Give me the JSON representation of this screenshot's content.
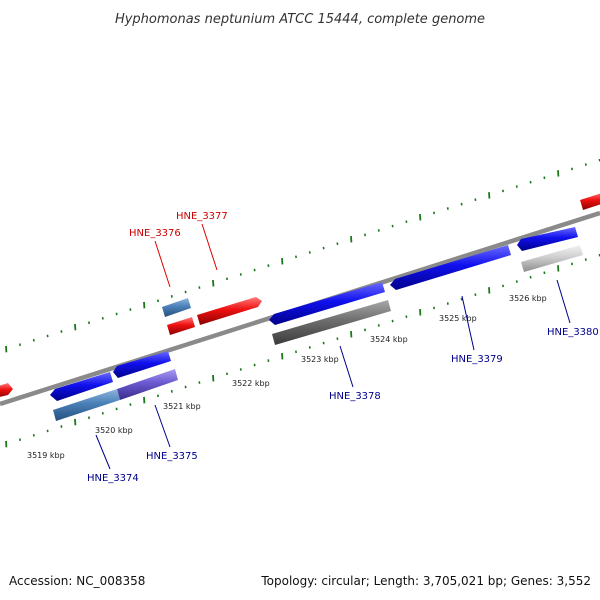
{
  "title": "Hyphomonas neptunium ATCC 15444, complete genome",
  "footer": {
    "accession": "Accession: NC_008358",
    "summary": "Topology: circular; Length: 3,705,021 bp; Genes: 3,552"
  },
  "colors": {
    "backbone": "#8a8a8a",
    "tick": "#1a7a1a",
    "forward_label": "#cc0000",
    "reverse_label": "#00008b"
  },
  "scale_labels": [
    "3519 kbp",
    "3520 kbp",
    "3521 kbp",
    "3522 kbp",
    "3523 kbp",
    "3524 kbp",
    "3525 kbp",
    "3526 kbp"
  ],
  "genes": [
    {
      "id": "HNE_3374",
      "strand": "reverse"
    },
    {
      "id": "HNE_3375",
      "strand": "reverse"
    },
    {
      "id": "HNE_3376",
      "strand": "forward"
    },
    {
      "id": "HNE_3377",
      "strand": "forward"
    },
    {
      "id": "HNE_3378",
      "strand": "reverse"
    },
    {
      "id": "HNE_3379",
      "strand": "reverse"
    },
    {
      "id": "HNE_3380",
      "strand": "reverse"
    }
  ]
}
